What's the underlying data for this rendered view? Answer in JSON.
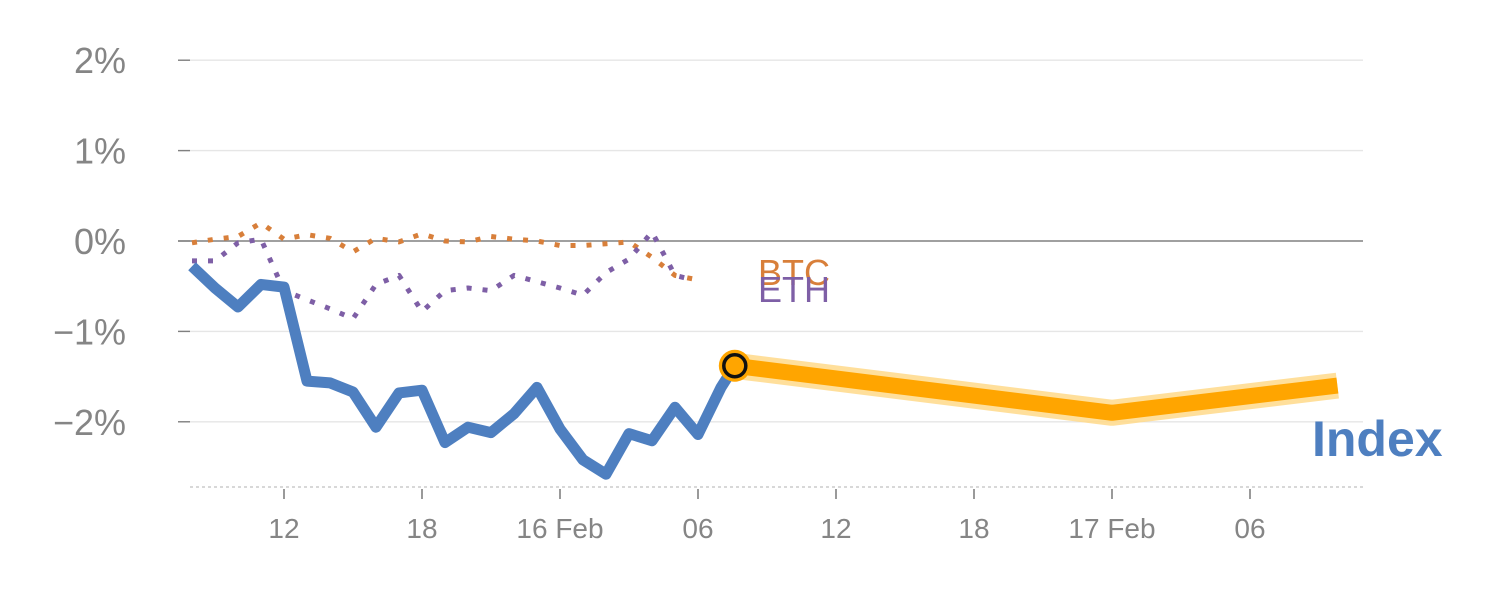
{
  "chart_data": {
    "type": "line",
    "title": "",
    "xlabel": "",
    "ylabel": "",
    "x_range_hours": [
      -2,
      50
    ],
    "ylim": [
      -2.7,
      2.2
    ],
    "y_ticks": [
      {
        "value": 2,
        "label": "2%"
      },
      {
        "value": 1,
        "label": "1%"
      },
      {
        "value": 0,
        "label": "0%"
      },
      {
        "value": -1,
        "label": "−1%"
      },
      {
        "value": -2,
        "label": "−2%"
      }
    ],
    "x_ticks": [
      {
        "hour": 3,
        "label": "12"
      },
      {
        "hour": 9,
        "label": "18"
      },
      {
        "hour": 15,
        "label": "16 Feb"
      },
      {
        "hour": 21,
        "label": "06"
      },
      {
        "hour": 27,
        "label": "12"
      },
      {
        "hour": 33,
        "label": "18"
      },
      {
        "hour": 39,
        "label": "17 Feb"
      },
      {
        "hour": 45,
        "label": "06"
      }
    ],
    "grid": true,
    "series": [
      {
        "name": "Index",
        "color": "#4e7fc0",
        "style": "solid",
        "points": [
          [
            -1,
            -0.28
          ],
          [
            0,
            -0.52
          ],
          [
            1,
            -0.73
          ],
          [
            2,
            -0.48
          ],
          [
            3,
            -0.51
          ],
          [
            4,
            -1.55
          ],
          [
            5,
            -1.57
          ],
          [
            6,
            -1.67
          ],
          [
            7,
            -2.06
          ],
          [
            8,
            -1.68
          ],
          [
            9,
            -1.65
          ],
          [
            10,
            -2.23
          ],
          [
            11,
            -2.06
          ],
          [
            12,
            -2.12
          ],
          [
            13,
            -1.91
          ],
          [
            14,
            -1.62
          ],
          [
            15,
            -2.08
          ],
          [
            16,
            -2.42
          ],
          [
            17,
            -2.58
          ],
          [
            18,
            -2.13
          ],
          [
            19,
            -2.21
          ],
          [
            20,
            -1.84
          ],
          [
            21,
            -2.14
          ],
          [
            22,
            -1.62
          ],
          [
            22.6,
            -1.38
          ]
        ]
      },
      {
        "name": "BTC",
        "color": "#d87f3a",
        "style": "dotted",
        "points": [
          [
            -1,
            -0.02
          ],
          [
            0,
            0.02
          ],
          [
            1,
            0.05
          ],
          [
            2,
            0.2
          ],
          [
            3,
            0.02
          ],
          [
            4,
            0.07
          ],
          [
            5,
            0.03
          ],
          [
            6,
            -0.12
          ],
          [
            7,
            0.03
          ],
          [
            8,
            -0.01
          ],
          [
            9,
            0.08
          ],
          [
            10,
            0.0
          ],
          [
            11,
            -0.01
          ],
          [
            12,
            0.05
          ],
          [
            13,
            0.02
          ],
          [
            14,
            0.0
          ],
          [
            15,
            -0.05
          ],
          [
            16,
            -0.05
          ],
          [
            17,
            -0.03
          ],
          [
            18,
            -0.01
          ],
          [
            19,
            -0.18
          ],
          [
            20,
            -0.38
          ],
          [
            20.8,
            -0.42
          ]
        ]
      },
      {
        "name": "ETH",
        "color": "#7e5fa6",
        "style": "dotted",
        "points": [
          [
            -1,
            -0.22
          ],
          [
            0,
            -0.22
          ],
          [
            1,
            -0.02
          ],
          [
            2,
            0.02
          ],
          [
            3,
            -0.55
          ],
          [
            4,
            -0.65
          ],
          [
            5,
            -0.75
          ],
          [
            6,
            -0.86
          ],
          [
            7,
            -0.48
          ],
          [
            8,
            -0.38
          ],
          [
            9,
            -0.78
          ],
          [
            10,
            -0.55
          ],
          [
            11,
            -0.52
          ],
          [
            12,
            -0.55
          ],
          [
            13,
            -0.38
          ],
          [
            14,
            -0.45
          ],
          [
            15,
            -0.52
          ],
          [
            16,
            -0.6
          ],
          [
            17,
            -0.35
          ],
          [
            18,
            -0.2
          ],
          [
            19,
            0.1
          ],
          [
            20,
            -0.38
          ],
          [
            20.8,
            -0.43
          ]
        ]
      },
      {
        "name": "",
        "color": "#ffa500",
        "style": "forecast",
        "points": [
          [
            22.6,
            -1.38
          ],
          [
            39,
            -1.9
          ],
          [
            48.8,
            -1.6
          ]
        ]
      }
    ],
    "current_marker": {
      "hour": 22.6,
      "value": -1.38
    }
  }
}
